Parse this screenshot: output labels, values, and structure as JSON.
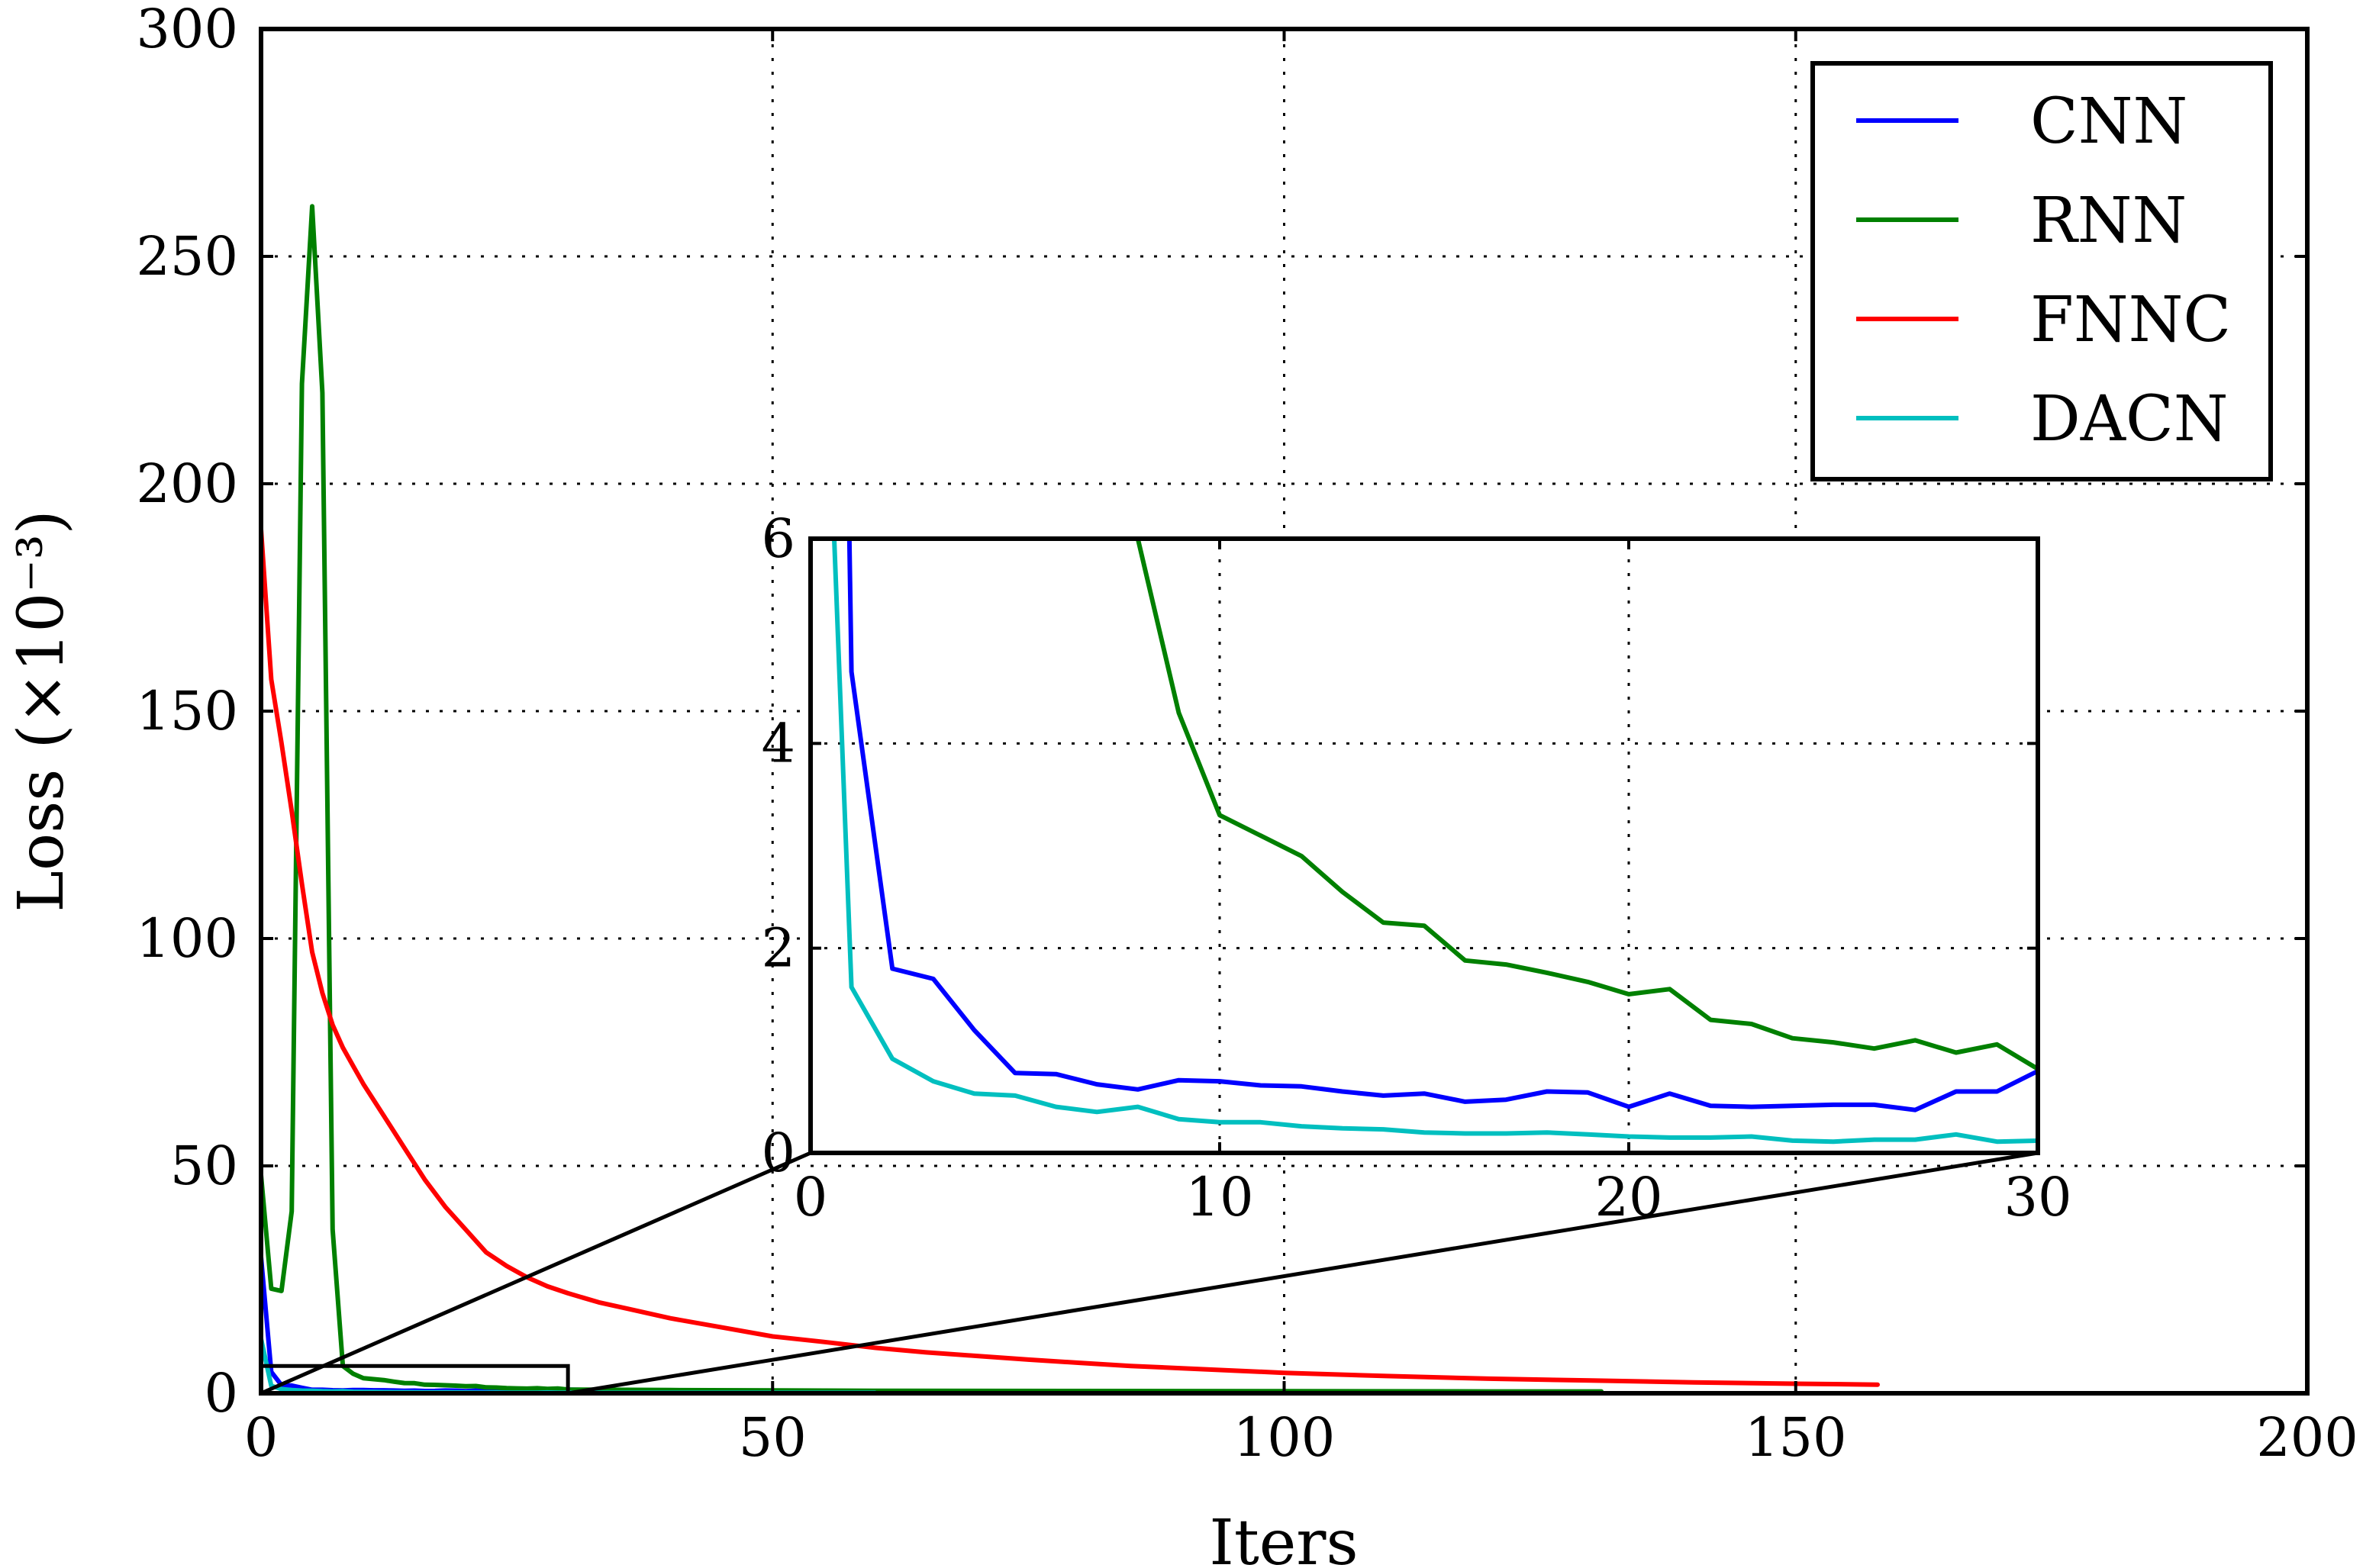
{
  "chart_data": {
    "type": "line",
    "xlabel": "Iters",
    "ylabel": "Loss (×10⁻³)",
    "xlim": [
      0,
      200
    ],
    "ylim": [
      0,
      300
    ],
    "xticks": [
      "0",
      "50",
      "100",
      "150",
      "200"
    ],
    "yticks": [
      "0",
      "50",
      "100",
      "150",
      "200",
      "250",
      "300"
    ],
    "grid": true,
    "legend_position": "top-right",
    "colors": {
      "CNN": "#0000ff",
      "RNN": "#008000",
      "FNNC": "#ff0000",
      "DACN": "#00bfbf"
    },
    "series": [
      {
        "name": "CNN",
        "color": "#0000ff",
        "x": [
          0,
          1,
          2,
          3,
          4,
          5,
          6,
          7,
          8,
          9,
          10,
          11,
          12,
          13,
          14,
          15,
          16,
          17,
          18,
          19,
          20,
          21,
          22,
          23,
          24,
          25,
          26,
          27,
          28,
          29,
          30,
          40,
          50,
          60,
          80,
          103
        ],
        "y": [
          30,
          4.7,
          1.8,
          1.7,
          1.2,
          0.78,
          0.77,
          0.67,
          0.62,
          0.71,
          0.7,
          0.66,
          0.65,
          0.6,
          0.56,
          0.58,
          0.5,
          0.52,
          0.6,
          0.59,
          0.45,
          0.58,
          0.46,
          0.45,
          0.46,
          0.47,
          0.47,
          0.42,
          0.6,
          0.6,
          0.8,
          0.5,
          0.4,
          0.35,
          0.3,
          0.3
        ]
      },
      {
        "name": "RNN",
        "color": "#008000",
        "x": [
          0,
          1,
          2,
          3,
          4,
          5,
          6,
          7,
          8,
          9,
          10,
          11,
          12,
          13,
          14,
          15,
          16,
          17,
          18,
          19,
          20,
          21,
          22,
          23,
          24,
          25,
          26,
          27,
          28,
          29,
          30,
          40,
          60,
          80,
          100,
          120,
          131
        ],
        "y": [
          48,
          23,
          22.5,
          40,
          222,
          261,
          220,
          36,
          6,
          4.3,
          3.3,
          3.1,
          2.9,
          2.55,
          2.25,
          2.22,
          1.88,
          1.84,
          1.76,
          1.67,
          1.55,
          1.6,
          1.3,
          1.26,
          1.12,
          1.08,
          1.02,
          1.1,
          0.98,
          1.06,
          0.82,
          0.7,
          0.55,
          0.5,
          0.45,
          0.4,
          0.4
        ]
      },
      {
        "name": "FNNC",
        "color": "#ff0000",
        "x": [
          0,
          1,
          2,
          3,
          4,
          5,
          6,
          7,
          8,
          9,
          10,
          12,
          14,
          16,
          18,
          20,
          22,
          24,
          26,
          28,
          30,
          33,
          36,
          40,
          45,
          50,
          55,
          60,
          65,
          70,
          75,
          80,
          85,
          90,
          95,
          100,
          110,
          120,
          130,
          140,
          150,
          158
        ],
        "y": [
          190,
          157,
          143,
          128,
          112,
          97,
          88,
          81,
          76,
          72,
          68,
          61,
          54,
          47,
          41,
          36,
          31,
          28,
          25.5,
          23.5,
          22,
          20,
          18.5,
          16.5,
          14.5,
          12.5,
          11.3,
          10,
          9,
          8.2,
          7.4,
          6.7,
          6,
          5.5,
          5,
          4.5,
          3.8,
          3.2,
          2.8,
          2.4,
          2.1,
          1.9
        ]
      },
      {
        "name": "DACN",
        "color": "#00bfbf",
        "x": [
          0,
          1,
          2,
          3,
          4,
          5,
          6,
          7,
          8,
          9,
          10,
          11,
          12,
          13,
          14,
          15,
          16,
          17,
          18,
          19,
          20,
          21,
          22,
          23,
          24,
          25,
          26,
          27,
          28,
          29,
          30,
          40,
          50,
          60
        ],
        "y": [
          12,
          1.62,
          0.92,
          0.7,
          0.58,
          0.56,
          0.45,
          0.4,
          0.45,
          0.33,
          0.3,
          0.3,
          0.26,
          0.24,
          0.23,
          0.2,
          0.19,
          0.19,
          0.2,
          0.18,
          0.16,
          0.15,
          0.15,
          0.16,
          0.12,
          0.11,
          0.13,
          0.13,
          0.18,
          0.11,
          0.12,
          0.1,
          0.1,
          0.1
        ]
      }
    ],
    "inset": {
      "xlim": [
        0,
        30
      ],
      "ylim": [
        0,
        6
      ],
      "xticks": [
        "0",
        "10",
        "20",
        "30"
      ],
      "yticks": [
        "0",
        "2",
        "4",
        "6"
      ],
      "grid": true,
      "zoom_region": {
        "x": [
          0,
          30
        ],
        "y": [
          0,
          6
        ]
      }
    }
  }
}
